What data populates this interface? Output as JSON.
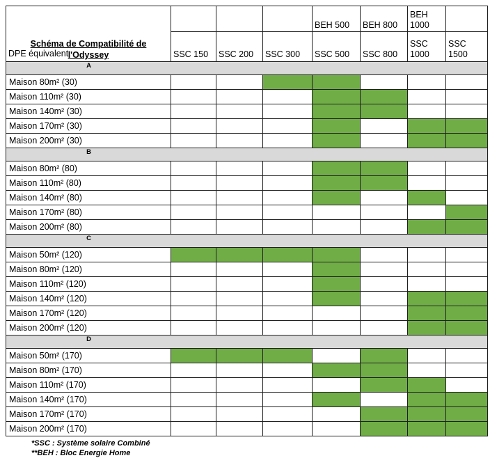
{
  "title": {
    "line1": "Schéma de Compatibilité de",
    "line2": "l'Odyssey"
  },
  "dpe_label": "DPE équivalent",
  "columns": {
    "top": [
      "",
      "",
      "",
      "BEH 500",
      "BEH 800",
      "BEH 1000",
      ""
    ],
    "bottom": [
      "SSC 150",
      "SSC 200",
      "SSC 300",
      "SSC 500",
      "SSC 800",
      "SSC 1000",
      "SSC 1500"
    ]
  },
  "groups": [
    {
      "label": "A",
      "rows": [
        {
          "label": "Maison 80m² (30)",
          "cells": [
            0,
            0,
            1,
            1,
            0,
            0,
            0
          ]
        },
        {
          "label": "Maison 110m² (30)",
          "cells": [
            0,
            0,
            0,
            1,
            1,
            0,
            0
          ]
        },
        {
          "label": "Maison 140m² (30)",
          "cells": [
            0,
            0,
            0,
            1,
            1,
            0,
            0
          ]
        },
        {
          "label": "Maison 170m² (30)",
          "cells": [
            0,
            0,
            0,
            1,
            0,
            1,
            1
          ]
        },
        {
          "label": "Maison 200m² (30)",
          "cells": [
            0,
            0,
            0,
            1,
            0,
            1,
            1
          ]
        }
      ]
    },
    {
      "label": "B",
      "rows": [
        {
          "label": "Maison 80m² (80)",
          "cells": [
            0,
            0,
            0,
            1,
            1,
            0,
            0
          ]
        },
        {
          "label": "Maison 110m² (80)",
          "cells": [
            0,
            0,
            0,
            1,
            1,
            0,
            0
          ]
        },
        {
          "label": "Maison 140m² (80)",
          "cells": [
            0,
            0,
            0,
            1,
            0,
            1,
            0
          ]
        },
        {
          "label": "Maison 170m² (80)",
          "cells": [
            0,
            0,
            0,
            0,
            0,
            0,
            1
          ]
        },
        {
          "label": "Maison 200m² (80)",
          "cells": [
            0,
            0,
            0,
            0,
            0,
            1,
            1
          ]
        }
      ]
    },
    {
      "label": "C",
      "rows": [
        {
          "label": "Maison 50m² (120)",
          "cells": [
            1,
            1,
            1,
            1,
            0,
            0,
            0
          ]
        },
        {
          "label": "Maison 80m² (120)",
          "cells": [
            0,
            0,
            0,
            1,
            0,
            0,
            0
          ]
        },
        {
          "label": "Maison 110m² (120)",
          "cells": [
            0,
            0,
            0,
            1,
            0,
            0,
            0
          ]
        },
        {
          "label": "Maison 140m² (120)",
          "cells": [
            0,
            0,
            0,
            1,
            0,
            1,
            1
          ]
        },
        {
          "label": "Maison 170m² (120)",
          "cells": [
            0,
            0,
            0,
            0,
            0,
            1,
            1
          ]
        },
        {
          "label": "Maison 200m² (120)",
          "cells": [
            0,
            0,
            0,
            0,
            0,
            1,
            1
          ]
        }
      ]
    },
    {
      "label": "D",
      "rows": [
        {
          "label": "Maison 50m² (170)",
          "cells": [
            1,
            1,
            1,
            0,
            1,
            0,
            0
          ]
        },
        {
          "label": "Maison 80m² (170)",
          "cells": [
            0,
            0,
            0,
            1,
            1,
            0,
            0
          ]
        },
        {
          "label": "Maison 110m² (170)",
          "cells": [
            0,
            0,
            0,
            0,
            1,
            1,
            0
          ]
        },
        {
          "label": "Maison 140m² (170)",
          "cells": [
            0,
            0,
            0,
            1,
            0,
            1,
            1
          ]
        },
        {
          "label": "Maison 170m² (170)",
          "cells": [
            0,
            0,
            0,
            0,
            1,
            1,
            1
          ]
        },
        {
          "label": "Maison 200m² (170)",
          "cells": [
            0,
            0,
            0,
            0,
            1,
            1,
            1
          ]
        }
      ]
    }
  ],
  "footnotes": [
    "*SSC : Système solaire Combiné",
    "**BEH : Bloc Energie Home"
  ],
  "colors": {
    "compatible_green": "#70AD47",
    "group_band_gray": "#D9D9D9",
    "border": "#1f1f1f"
  }
}
